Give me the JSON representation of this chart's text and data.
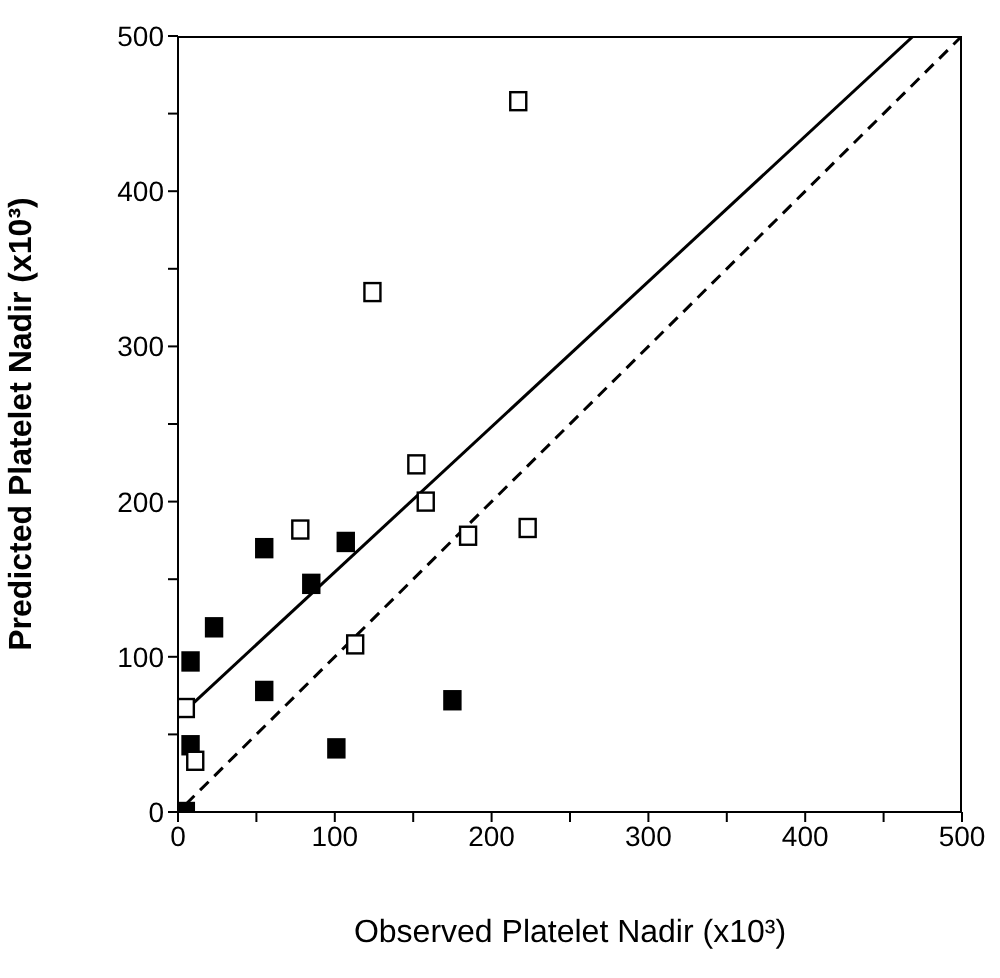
{
  "chart_data": {
    "type": "scatter",
    "xlabel": "Observed Platelet Nadir (x10³)",
    "ylabel": "Predicted Platelet Nadir (x10³)",
    "xlim": [
      0,
      500
    ],
    "ylim": [
      0,
      500
    ],
    "xticks": [
      0,
      {
        "value": 50,
        "label": null
      },
      100,
      {
        "value": 150,
        "label": null
      },
      200,
      {
        "value": 250,
        "label": null
      },
      300,
      {
        "value": 350,
        "label": null
      },
      400,
      {
        "value": 450,
        "label": null
      },
      500
    ],
    "yticks": [
      0,
      {
        "value": 50,
        "label": null
      },
      100,
      {
        "value": 150,
        "label": null
      },
      200,
      {
        "value": 250,
        "label": null
      },
      300,
      {
        "value": 350,
        "label": null
      },
      400,
      {
        "value": 450,
        "label": null
      },
      500
    ],
    "grid": false,
    "series": [
      {
        "marker": "square",
        "color": "#000000",
        "x": [
          5,
          8,
          8,
          23,
          55,
          55,
          85,
          107,
          101,
          175
        ],
        "values": [
          0,
          97,
          43,
          119,
          170,
          78,
          147,
          174,
          41,
          72
        ]
      },
      {
        "marker": "square",
        "color": "#ffffff",
        "x": [
          5,
          11,
          78,
          113,
          152,
          158,
          185,
          223,
          124,
          217
        ],
        "values": [
          67,
          33,
          182,
          108,
          224,
          200,
          178,
          183,
          335,
          458
        ]
      },
      {
        "type": "line",
        "color": "#000000",
        "line_style": "solid",
        "x": [
          0,
          469
        ],
        "values": [
          61,
          500
        ]
      },
      {
        "type": "line",
        "color": "#000000",
        "line_style": "dashed",
        "x": [
          5,
          500
        ],
        "values": [
          5,
          500
        ]
      }
    ]
  }
}
